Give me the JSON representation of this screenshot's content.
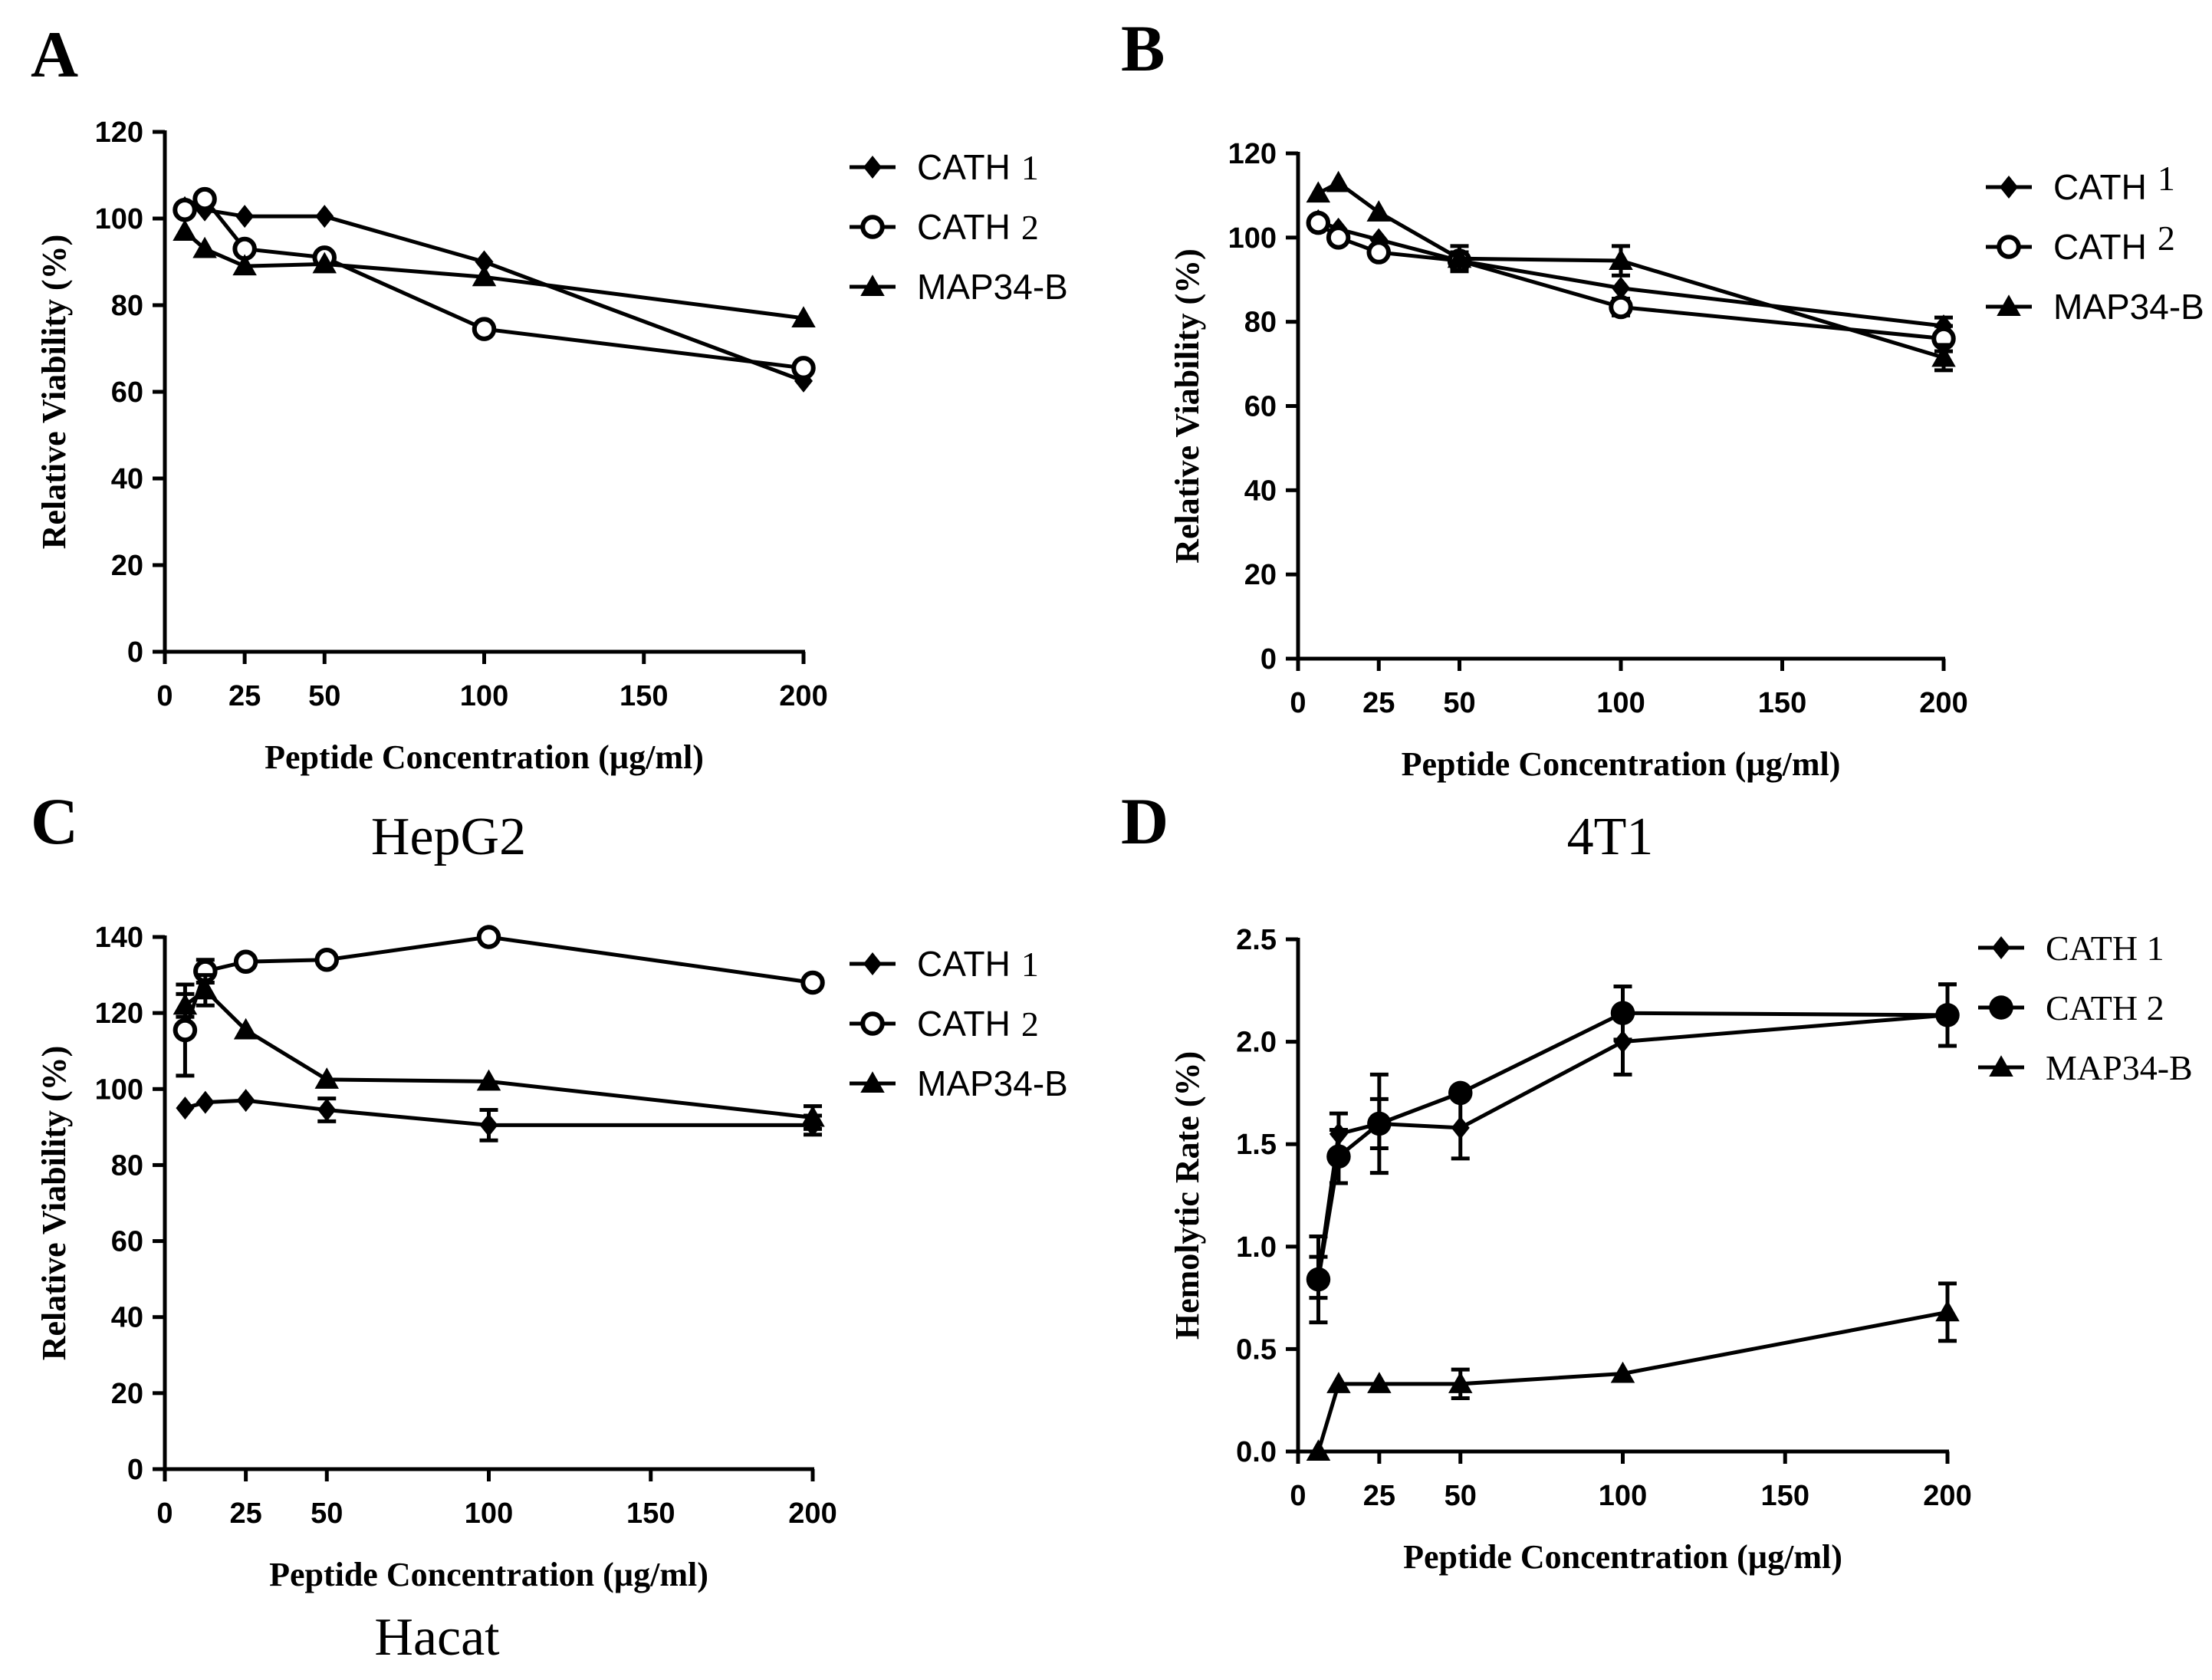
{
  "captions": {
    "hepg2": "HepG2",
    "t41": "4T1",
    "hacat": "Hacat"
  },
  "chart_data": [
    {
      "id": "A",
      "panel": "A",
      "type": "line",
      "xlabel": "Peptide Concentration (µg/ml)",
      "ylabel": "Relative Viability (%)",
      "xlim": [
        0,
        200
      ],
      "ylim": [
        0,
        120
      ],
      "xticks": [
        "0",
        "25",
        "50",
        "100",
        "150",
        "200"
      ],
      "yticks": [
        "0",
        "20",
        "40",
        "60",
        "80",
        "100",
        "120"
      ],
      "legend_position": "top-right",
      "series": [
        {
          "name": "CATH 1",
          "label": "CATH",
          "suffix": "1",
          "marker": "diamond",
          "x": [
            6.25,
            12.5,
            25,
            50,
            100,
            200
          ],
          "y": [
            102.5,
            102,
            100.5,
            100.5,
            90,
            62.5
          ],
          "err": [
            0,
            0,
            0,
            0,
            0,
            0
          ]
        },
        {
          "name": "CATH 2",
          "label": "CATH",
          "suffix": "2",
          "marker": "circle-open",
          "x": [
            6.25,
            12.5,
            25,
            50,
            100,
            200
          ],
          "y": [
            102,
            104.5,
            93,
            91,
            74.5,
            65.5
          ],
          "err": [
            0,
            0,
            0,
            0,
            0,
            0
          ]
        },
        {
          "name": "MAP34-B",
          "label": "MAP34-B",
          "suffix": "",
          "marker": "triangle",
          "x": [
            6.25,
            12.5,
            25,
            50,
            100,
            200
          ],
          "y": [
            97,
            93,
            89,
            89.5,
            86.5,
            77
          ],
          "err": [
            0,
            0,
            0,
            0,
            0,
            0
          ]
        }
      ]
    },
    {
      "id": "B",
      "panel": "B",
      "type": "line",
      "xlabel": "Peptide Concentration (µg/ml)",
      "ylabel": "Relative Viability (%)",
      "xlim": [
        0,
        200
      ],
      "ylim": [
        0,
        120
      ],
      "xticks": [
        "0",
        "25",
        "50",
        "100",
        "150",
        "200"
      ],
      "yticks": [
        "0",
        "20",
        "40",
        "60",
        "80",
        "100",
        "120"
      ],
      "legend_position": "top-right",
      "series": [
        {
          "name": "CATH 1",
          "label": "CATH",
          "suffix": "1",
          "marker": "diamond",
          "x": [
            6.25,
            12.5,
            25,
            50,
            100,
            200
          ],
          "y": [
            104,
            102,
            99.5,
            94.5,
            88,
            79
          ],
          "err": [
            0,
            0,
            0,
            0,
            0,
            2
          ]
        },
        {
          "name": "CATH 2",
          "label": "CATH",
          "suffix": "2",
          "marker": "circle-open",
          "x": [
            6.25,
            12.5,
            25,
            50,
            100,
            200
          ],
          "y": [
            103.5,
            100,
            96.5,
            94.5,
            83.5,
            76
          ],
          "err": [
            0,
            0,
            0,
            2,
            2,
            3
          ]
        },
        {
          "name": "MAP34-B",
          "label": "MAP34-B",
          "suffix": "",
          "marker": "triangle",
          "x": [
            6.25,
            12.5,
            25,
            50,
            100,
            200
          ],
          "y": [
            110.5,
            113,
            106,
            95,
            94.5,
            71.5
          ],
          "err": [
            0,
            0,
            0,
            3,
            3.5,
            3
          ]
        }
      ]
    },
    {
      "id": "C",
      "panel": "C",
      "type": "line",
      "xlabel": "Peptide Concentration (µg/ml)",
      "ylabel": "Relative Viability (%)",
      "xlim": [
        0,
        200
      ],
      "ylim": [
        0,
        140
      ],
      "xticks": [
        "0",
        "25",
        "50",
        "100",
        "150",
        "200"
      ],
      "yticks": [
        "0",
        "20",
        "40",
        "60",
        "80",
        "100",
        "120",
        "140"
      ],
      "legend_position": "top-right",
      "series": [
        {
          "name": "CATH 1",
          "label": "CATH",
          "suffix": "1",
          "marker": "diamond",
          "x": [
            6.25,
            12.5,
            25,
            50,
            100,
            200
          ],
          "y": [
            95,
            96.5,
            97,
            94.5,
            90.5,
            90.5
          ],
          "err": [
            0,
            0,
            0,
            3,
            4,
            2.5
          ]
        },
        {
          "name": "CATH 2",
          "label": "CATH",
          "suffix": "2",
          "marker": "circle-open",
          "x": [
            6.25,
            12.5,
            25,
            50,
            100,
            200
          ],
          "y": [
            115.5,
            131,
            133.5,
            134,
            140,
            128
          ],
          "err": [
            12,
            3,
            0,
            0,
            0,
            0
          ]
        },
        {
          "name": "MAP34-B",
          "label": "MAP34-B",
          "suffix": "",
          "marker": "triangle",
          "x": [
            6.25,
            12.5,
            25,
            50,
            100,
            200
          ],
          "y": [
            122,
            126,
            115.5,
            102.5,
            102,
            92.5
          ],
          "err": [
            3,
            4,
            0,
            0,
            0,
            3
          ]
        }
      ]
    },
    {
      "id": "D",
      "panel": "D",
      "type": "line",
      "xlabel": "Peptide Concentration (µg/ml)",
      "ylabel": "Hemolytic Rate (%)",
      "xlim": [
        0,
        200
      ],
      "ylim": [
        0,
        2.5
      ],
      "xticks": [
        "0",
        "25",
        "50",
        "100",
        "150",
        "200"
      ],
      "yticks": [
        "0.0",
        "0.5",
        "1.0",
        "1.5",
        "2.0",
        "2.5"
      ],
      "legend_position": "top-right",
      "series": [
        {
          "name": "CATH 1",
          "label": "CATH 1",
          "suffix": "",
          "marker": "diamond",
          "x": [
            6.25,
            12.5,
            25,
            50,
            100,
            200
          ],
          "y": [
            0.85,
            1.55,
            1.6,
            1.58,
            2.0,
            2.13
          ],
          "err": [
            0.1,
            0.1,
            0.12,
            0.15,
            0.16,
            0.15
          ]
        },
        {
          "name": "CATH 2",
          "label": "CATH 2",
          "suffix": "",
          "marker": "circle-filled",
          "x": [
            6.25,
            12.5,
            25,
            50,
            100,
            200
          ],
          "y": [
            0.84,
            1.44,
            1.6,
            1.75,
            2.14,
            2.13
          ],
          "err": [
            0.21,
            0.13,
            0.24,
            0,
            0.13,
            0.15
          ]
        },
        {
          "name": "MAP34-B",
          "label": "MAP34-B",
          "suffix": "",
          "marker": "triangle",
          "x": [
            6.25,
            12.5,
            25,
            50,
            100,
            200
          ],
          "y": [
            0.0,
            0.33,
            0.33,
            0.33,
            0.38,
            0.68
          ],
          "err": [
            0,
            0,
            0,
            0.07,
            0,
            0.14
          ]
        }
      ]
    }
  ]
}
